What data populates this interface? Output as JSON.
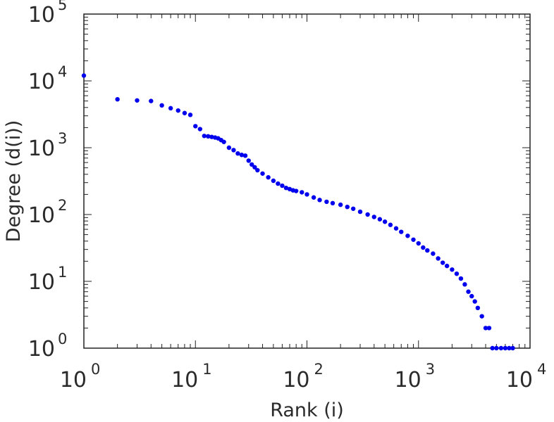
{
  "chart_data": {
    "type": "scatter",
    "xlabel": "Rank (i)",
    "ylabel": "Degree (d(i))",
    "xscale": "log",
    "yscale": "log",
    "xlim": [
      1,
      10000
    ],
    "ylim": [
      1,
      100000
    ],
    "grid": false,
    "marker_color": "#0000ee",
    "x_ticks": [
      {
        "base": "10",
        "exp": "0"
      },
      {
        "base": "10",
        "exp": "1"
      },
      {
        "base": "10",
        "exp": "2"
      },
      {
        "base": "10",
        "exp": "3"
      },
      {
        "base": "10",
        "exp": "4"
      }
    ],
    "y_ticks": [
      {
        "base": "10",
        "exp": "0"
      },
      {
        "base": "10",
        "exp": "1"
      },
      {
        "base": "10",
        "exp": "2"
      },
      {
        "base": "10",
        "exp": "3"
      },
      {
        "base": "10",
        "exp": "4"
      },
      {
        "base": "10",
        "exp": "5"
      }
    ],
    "points": [
      [
        1,
        12000
      ],
      [
        2,
        5300
      ],
      [
        3,
        5100
      ],
      [
        4,
        5000
      ],
      [
        5,
        4300
      ],
      [
        6,
        3900
      ],
      [
        7,
        3600
      ],
      [
        8,
        3300
      ],
      [
        9,
        3100
      ],
      [
        10,
        2100
      ],
      [
        11,
        1900
      ],
      [
        12,
        1500
      ],
      [
        13,
        1480
      ],
      [
        14,
        1450
      ],
      [
        15,
        1420
      ],
      [
        16,
        1380
      ],
      [
        17,
        1300
      ],
      [
        18,
        1220
      ],
      [
        20,
        1000
      ],
      [
        22,
        920
      ],
      [
        24,
        820
      ],
      [
        26,
        780
      ],
      [
        28,
        760
      ],
      [
        30,
        640
      ],
      [
        32,
        560
      ],
      [
        34,
        510
      ],
      [
        36,
        460
      ],
      [
        40,
        410
      ],
      [
        45,
        360
      ],
      [
        50,
        320
      ],
      [
        55,
        290
      ],
      [
        60,
        270
      ],
      [
        65,
        250
      ],
      [
        70,
        240
      ],
      [
        75,
        230
      ],
      [
        80,
        225
      ],
      [
        90,
        215
      ],
      [
        100,
        200
      ],
      [
        115,
        180
      ],
      [
        130,
        165
      ],
      [
        150,
        155
      ],
      [
        170,
        148
      ],
      [
        200,
        140
      ],
      [
        230,
        130
      ],
      [
        260,
        122
      ],
      [
        300,
        110
      ],
      [
        350,
        100
      ],
      [
        400,
        92
      ],
      [
        450,
        85
      ],
      [
        500,
        78
      ],
      [
        560,
        70
      ],
      [
        630,
        62
      ],
      [
        700,
        55
      ],
      [
        800,
        48
      ],
      [
        900,
        42
      ],
      [
        1000,
        37
      ],
      [
        1100,
        32
      ],
      [
        1200,
        29
      ],
      [
        1350,
        26
      ],
      [
        1500,
        22
      ],
      [
        1650,
        19
      ],
      [
        1800,
        17
      ],
      [
        2000,
        15
      ],
      [
        2200,
        13
      ],
      [
        2400,
        11
      ],
      [
        2600,
        9
      ],
      [
        2800,
        7
      ],
      [
        3000,
        6
      ],
      [
        3200,
        5
      ],
      [
        3400,
        4
      ],
      [
        3700,
        3
      ],
      [
        4000,
        2
      ],
      [
        4300,
        2
      ],
      [
        4600,
        1
      ],
      [
        5000,
        1
      ],
      [
        5500,
        1
      ],
      [
        6000,
        1
      ],
      [
        6500,
        1
      ],
      [
        7000,
        1
      ]
    ]
  }
}
